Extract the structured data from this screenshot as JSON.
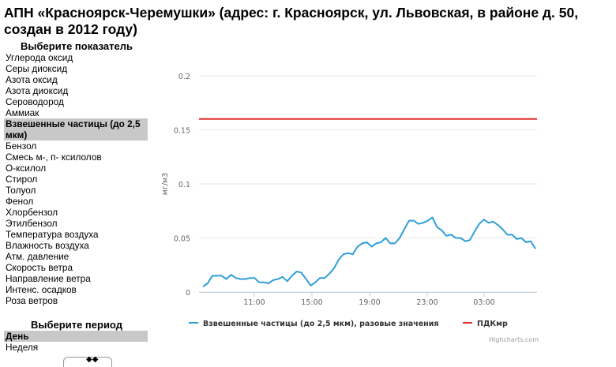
{
  "page": {
    "title": "АПН «Красноярск-Черемушки» (адрес: г. Красноярск, ул. Львовская, в районе д. 50, создан в 2012 году)"
  },
  "indicators": {
    "heading": "Выберите показатель",
    "items": [
      {
        "label": "Углерода оксид",
        "selected": false
      },
      {
        "label": "Серы диоксид",
        "selected": false
      },
      {
        "label": "Азота оксид",
        "selected": false
      },
      {
        "label": "Азота диоксид",
        "selected": false
      },
      {
        "label": "Сероводород",
        "selected": false
      },
      {
        "label": "Аммиак",
        "selected": false
      },
      {
        "label": "Взвешенные частицы (до 2,5 мкм)",
        "selected": true
      },
      {
        "label": "Бензол",
        "selected": false
      },
      {
        "label": "Смесь м-, п- ксилолов",
        "selected": false
      },
      {
        "label": "О-ксилол",
        "selected": false
      },
      {
        "label": "Стирол",
        "selected": false
      },
      {
        "label": "Толуол",
        "selected": false
      },
      {
        "label": "Фенол",
        "selected": false
      },
      {
        "label": "Хлорбензол",
        "selected": false
      },
      {
        "label": "Этилбензол",
        "selected": false
      },
      {
        "label": "Температура воздуха",
        "selected": false
      },
      {
        "label": "Влажность воздуха",
        "selected": false
      },
      {
        "label": "Атм. давление",
        "selected": false
      },
      {
        "label": "Скорость ветра",
        "selected": false
      },
      {
        "label": "Направление ветра",
        "selected": false
      },
      {
        "label": "Интенс. осадков",
        "selected": false
      },
      {
        "label": "Роза ветров",
        "selected": false
      }
    ]
  },
  "period": {
    "heading": "Выберите период",
    "items": [
      {
        "label": "День",
        "selected": true
      },
      {
        "label": "Неделя",
        "selected": false
      }
    ]
  },
  "chart_data": {
    "type": "line",
    "ylabel": "мг/м3",
    "ylim": [
      0,
      0.2
    ],
    "y_ticks": [
      "0",
      "0.05",
      "0.1",
      "0.15",
      "0.2"
    ],
    "x_tick_labels": [
      "11:00",
      "15:00",
      "19:00",
      "23:00",
      "03:00"
    ],
    "grid": true,
    "legend_position": "bottom",
    "credits": "Highcharts.com",
    "series": [
      {
        "name": "Взвешенные частицы (до 2,5 мкм), разовые значения",
        "color": "#2f9fd8",
        "values": [
          0.005,
          0.008,
          0.015,
          0.015,
          0.015,
          0.012,
          0.016,
          0.013,
          0.012,
          0.012,
          0.013,
          0.013,
          0.009,
          0.009,
          0.008,
          0.011,
          0.012,
          0.014,
          0.01,
          0.015,
          0.019,
          0.018,
          0.012,
          0.006,
          0.009,
          0.013,
          0.013,
          0.017,
          0.022,
          0.03,
          0.035,
          0.036,
          0.035,
          0.042,
          0.045,
          0.046,
          0.042,
          0.045,
          0.046,
          0.05,
          0.045,
          0.045,
          0.05,
          0.058,
          0.066,
          0.066,
          0.063,
          0.064,
          0.066,
          0.069,
          0.06,
          0.057,
          0.052,
          0.053,
          0.05,
          0.05,
          0.047,
          0.048,
          0.056,
          0.063,
          0.067,
          0.064,
          0.065,
          0.062,
          0.058,
          0.053,
          0.053,
          0.049,
          0.05,
          0.046,
          0.047,
          0.04
        ]
      },
      {
        "name": "ПДКмр",
        "color": "#e0302f",
        "value": 0.16
      }
    ]
  }
}
